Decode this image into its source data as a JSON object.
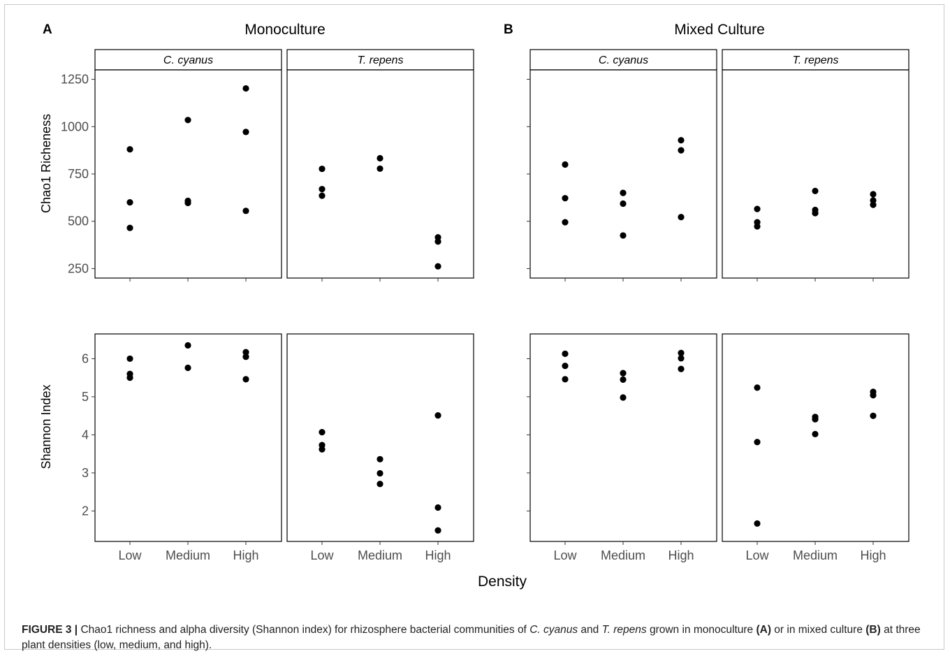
{
  "figure": {
    "panel_a_label": "A",
    "panel_b_label": "B",
    "panel_a_title": "Monoculture",
    "panel_b_title": "Mixed Culture",
    "x_axis_title": "Density",
    "y_axis_top_title": "Chao1 Richeness",
    "y_axis_bottom_title": "Shannon Index",
    "caption": {
      "label": "FIGURE 3 |",
      "t1": " Chao1 richness and alpha diversity (Shannon index) for rhizosphere bacterial communities of ",
      "sp1": "C. cyanus",
      "t2": " and ",
      "sp2": "T. repens",
      "t3": " grown in monoculture ",
      "a": "(A)",
      "t4": " or in mixed culture ",
      "b": "(B)",
      "t5": " at three plant densities (low, medium, and high)."
    }
  },
  "chart_data": {
    "type": "scatter",
    "categories": [
      "Low",
      "Medium",
      "High"
    ],
    "rows": [
      {
        "metric": "Chao1 Richeness",
        "ylim": [
          200,
          1300
        ],
        "yticks": [
          250,
          500,
          750,
          1000,
          1250
        ]
      },
      {
        "metric": "Shannon Index",
        "ylim": [
          1.2,
          6.65
        ],
        "yticks": [
          2,
          3,
          4,
          5,
          6
        ]
      }
    ],
    "panels": [
      {
        "group": "Monoculture",
        "species": "C. cyanus",
        "metric": "Chao1 Richeness",
        "points": {
          "Low": [
            880,
            600,
            465
          ],
          "Medium": [
            1035,
            608,
            597
          ],
          "High": [
            1202,
            972,
            555
          ]
        }
      },
      {
        "group": "Monoculture",
        "species": "T. repens",
        "metric": "Chao1 Richeness",
        "points": {
          "Low": [
            777,
            670,
            635
          ],
          "Medium": [
            833,
            778
          ],
          "High": [
            415,
            393,
            262
          ]
        }
      },
      {
        "group": "Mixed Culture",
        "species": "C. cyanus",
        "metric": "Chao1 Richeness",
        "points": {
          "Low": [
            800,
            622,
            495
          ],
          "Medium": [
            650,
            593,
            425
          ],
          "High": [
            928,
            875,
            522
          ]
        }
      },
      {
        "group": "Mixed Culture",
        "species": "T. repens",
        "metric": "Chao1 Richeness",
        "points": {
          "Low": [
            565,
            495,
            473
          ],
          "Medium": [
            660,
            560,
            543
          ],
          "High": [
            643,
            610,
            587
          ]
        }
      },
      {
        "group": "Monoculture",
        "species": "C. cyanus",
        "metric": "Shannon Index",
        "points": {
          "Low": [
            6.0,
            5.6,
            5.5
          ],
          "Medium": [
            6.35,
            5.76
          ],
          "High": [
            6.17,
            6.05,
            5.46
          ]
        }
      },
      {
        "group": "Monoculture",
        "species": "T. repens",
        "metric": "Shannon Index",
        "points": {
          "Low": [
            4.07,
            3.73,
            3.62
          ],
          "Medium": [
            3.36,
            2.99,
            2.71
          ],
          "High": [
            4.51,
            2.09,
            1.49
          ]
        }
      },
      {
        "group": "Mixed Culture",
        "species": "C. cyanus",
        "metric": "Shannon Index",
        "points": {
          "Low": [
            6.13,
            5.81,
            5.46
          ],
          "Medium": [
            5.62,
            5.45,
            4.98
          ],
          "High": [
            6.15,
            6.01,
            5.73
          ]
        }
      },
      {
        "group": "Mixed Culture",
        "species": "T. repens",
        "metric": "Shannon Index",
        "points": {
          "Low": [
            5.24,
            3.81,
            1.67
          ],
          "Medium": [
            4.47,
            4.41,
            4.02
          ],
          "High": [
            5.13,
            5.04,
            4.5
          ]
        }
      }
    ],
    "grid": false,
    "legend": "none",
    "point_color": "#000000"
  }
}
